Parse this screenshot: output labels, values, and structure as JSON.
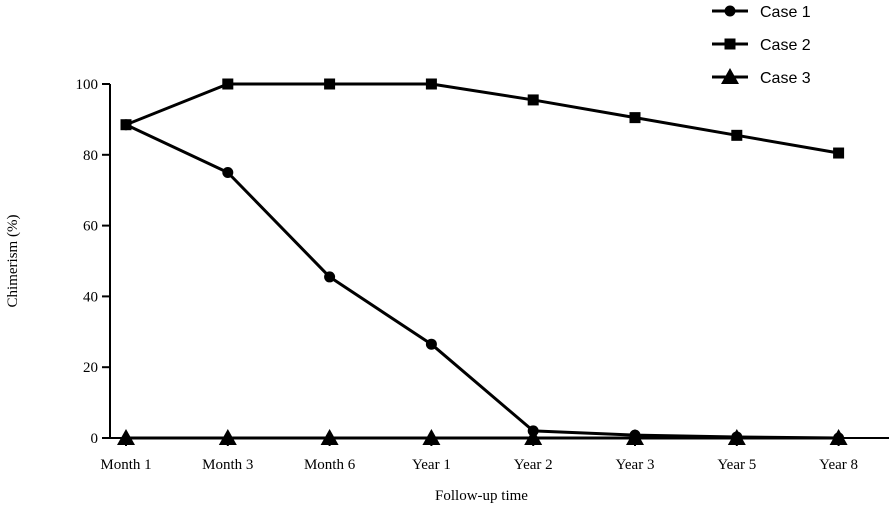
{
  "chart_data": {
    "type": "line",
    "xlabel": "Follow-up time",
    "ylabel": "Chimerism (%)",
    "categories": [
      "Month 1",
      "Month 3",
      "Month 6",
      "Year 1",
      "Year 2",
      "Year 3",
      "Year 5",
      "Year 8"
    ],
    "ylim": [
      0,
      100
    ],
    "yticks": [
      "0",
      "20",
      "40",
      "60",
      "80",
      "100"
    ],
    "legend_position": "top-right",
    "series": [
      {
        "name": "Case 1",
        "marker": "circle",
        "values": [
          88.5,
          75,
          45.5,
          26.5,
          2,
          0.8,
          0.3,
          0
        ]
      },
      {
        "name": "Case 2",
        "marker": "square",
        "values": [
          88.5,
          100,
          100,
          100,
          95.5,
          90.5,
          85.5,
          80.5
        ]
      },
      {
        "name": "Case 3",
        "marker": "triangle",
        "values": [
          0,
          0,
          0,
          0,
          0,
          0,
          0,
          0
        ]
      }
    ]
  }
}
